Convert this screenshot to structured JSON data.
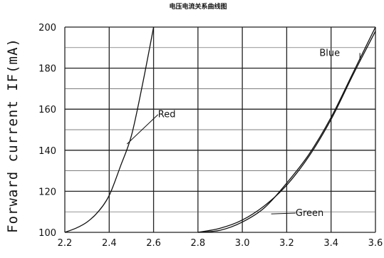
{
  "chart_data": {
    "type": "line",
    "title": "电压电流关系曲线图",
    "xlabel": "",
    "ylabel": "Forward current IF(mA)",
    "xlim": [
      2.2,
      3.6
    ],
    "ylim": [
      100,
      200
    ],
    "x_ticks": [
      "2.2",
      "2.4",
      "2.6",
      "2.8",
      "3.0",
      "3.2",
      "3.4",
      "3.6"
    ],
    "y_ticks": [
      "100",
      "120",
      "140",
      "160",
      "180",
      "200"
    ],
    "grid": true,
    "series": [
      {
        "name": "Red",
        "x": [
          2.2,
          2.25,
          2.3,
          2.35,
          2.4,
          2.45,
          2.5,
          2.55,
          2.6
        ],
        "y": [
          100,
          102,
          105,
          110,
          118,
          132,
          147,
          172,
          200
        ]
      },
      {
        "name": "Green",
        "x": [
          2.8,
          2.9,
          3.0,
          3.1,
          3.2,
          3.3,
          3.4,
          3.5,
          3.6
        ],
        "y": [
          100,
          102,
          106,
          113,
          123,
          137,
          155,
          177,
          198
        ]
      },
      {
        "name": "Blue",
        "x": [
          2.8,
          2.9,
          3.0,
          3.1,
          3.2,
          3.3,
          3.4,
          3.5,
          3.6
        ],
        "y": [
          100,
          101,
          105,
          112,
          124,
          138,
          156,
          178,
          200
        ]
      }
    ],
    "annotations": [
      {
        "text": "Red",
        "x": 2.48,
        "y": 143,
        "tx": 2.62,
        "ty": 156
      },
      {
        "text": "Blue",
        "x": 3.53,
        "y": 184,
        "tx": 3.44,
        "ty": 186
      },
      {
        "text": "Green",
        "x": 3.13,
        "y": 109,
        "tx": 3.24,
        "ty": 108
      }
    ]
  }
}
